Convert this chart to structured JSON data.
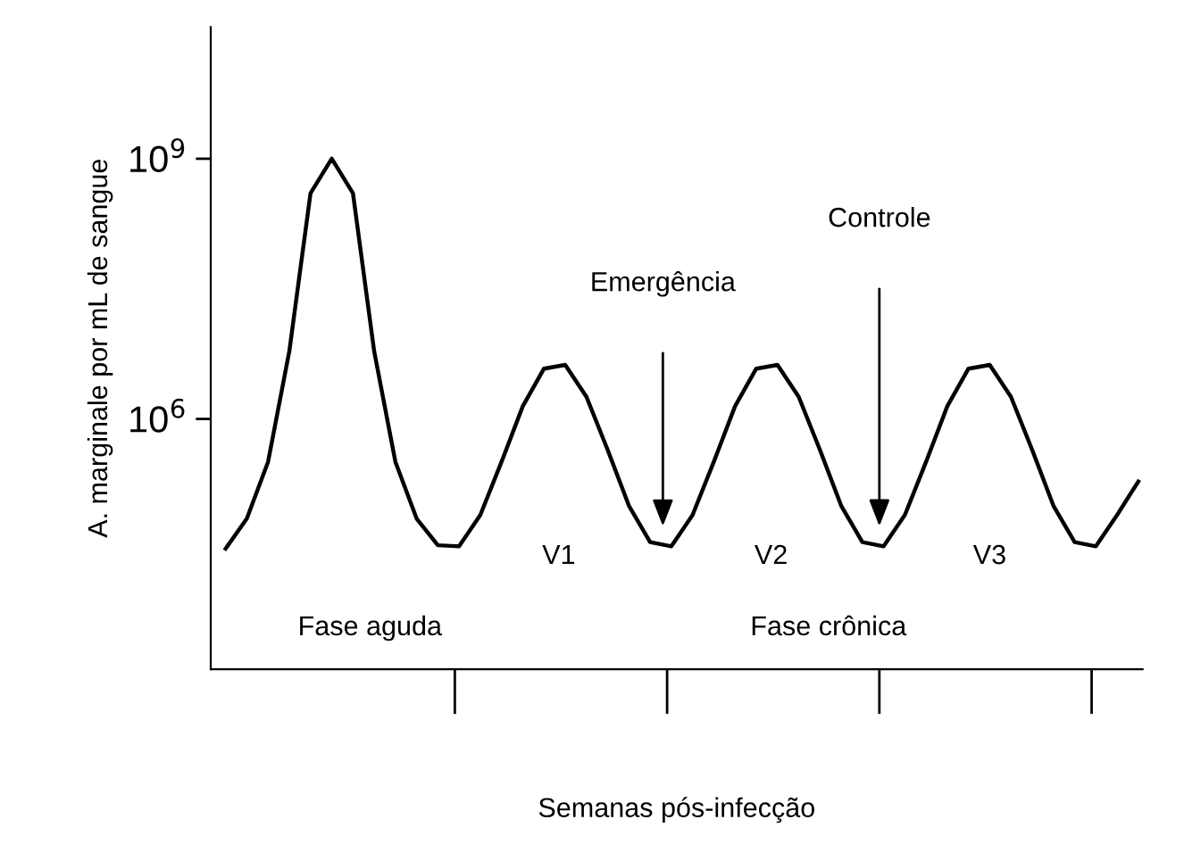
{
  "chart_data": {
    "type": "line",
    "xlabel": "Semanas pós-infecção",
    "ylabel": "A. marginale por mL de sangue",
    "categories": [
      null,
      null,
      null,
      null,
      null,
      null,
      null,
      null,
      null,
      null,
      null,
      null,
      null,
      null,
      null,
      null,
      null,
      null,
      null,
      null,
      null,
      null,
      null,
      null,
      null,
      null,
      null,
      null,
      null,
      null,
      null,
      null,
      null,
      null,
      null,
      null,
      null,
      null,
      null,
      null,
      null,
      null,
      null,
      null
    ],
    "series": [
      {
        "color": "#000000",
        "values": [
          32000.0,
          71000.0,
          320000.0,
          6000000.0,
          400000000.0,
          1000000000.0,
          400000000.0,
          6000000.0,
          320000.0,
          71000.0,
          35000.0,
          34000.0,
          78000.0,
          320000.0,
          1400000.0,
          3800000.0,
          4200000.0,
          1800000.0,
          440000.0,
          100000.0,
          38000.0,
          34000.0,
          78000.0,
          320000.0,
          1400000.0,
          3800000.0,
          4200000.0,
          1800000.0,
          440000.0,
          100000.0,
          38000.0,
          34000.0,
          78000.0,
          320000.0,
          1400000.0,
          3800000.0,
          4200000.0,
          1800000.0,
          440000.0,
          100000.0,
          38000.0,
          34000.0,
          78000.0,
          190000.0
        ]
      }
    ],
    "log": "y",
    "ylim": [
      1300,
      33000000000.0
    ],
    "yticks": [
      {
        "value": 1000000.0,
        "label": "10$^{6}$"
      },
      {
        "value": 1000000000.0,
        "label": "10$^{9}$"
      }
    ],
    "marker": "none",
    "line_style": "solid",
    "annotations": [
      "Emergência",
      "Controle",
      "V1",
      "V2",
      "V3",
      "Fase aguda",
      "Fase crônica"
    ]
  }
}
